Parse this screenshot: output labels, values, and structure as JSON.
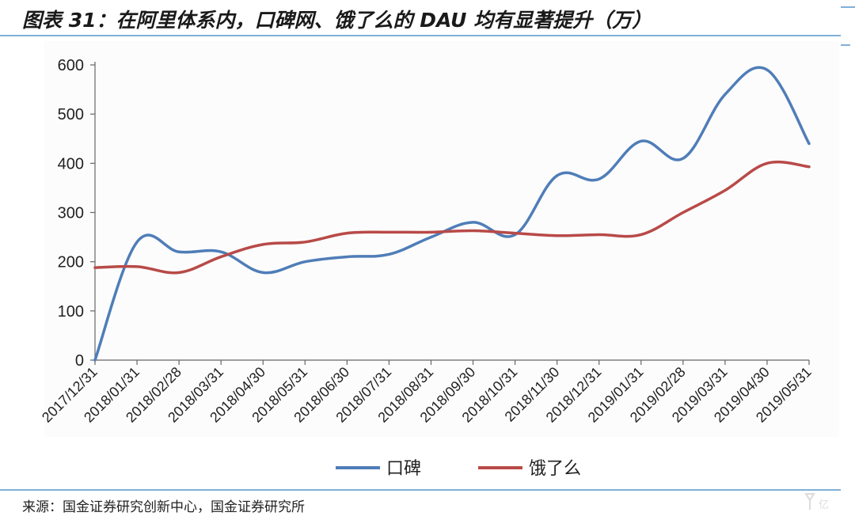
{
  "title": "图表 31：在阿里体系内，口碑网、饿了么的 DAU 均有显著提升（万）",
  "source": "来源：国金证券研究创新中心，国金证券研究所",
  "chart_data": {
    "type": "line",
    "categories": [
      "2017/12/31",
      "2018/01/31",
      "2018/02/28",
      "2018/03/31",
      "2018/04/30",
      "2018/05/31",
      "2018/06/30",
      "2018/07/31",
      "2018/08/31",
      "2018/09/30",
      "2018/10/31",
      "2018/11/30",
      "2018/12/31",
      "2019/01/31",
      "2019/02/28",
      "2019/03/31",
      "2019/04/30",
      "2019/05/31"
    ],
    "series": [
      {
        "name": "口碑",
        "color": "#4f7db8",
        "values": [
          0,
          240,
          220,
          220,
          178,
          200,
          210,
          215,
          250,
          280,
          255,
          375,
          368,
          445,
          410,
          540,
          590,
          440
        ]
      },
      {
        "name": "饿了么",
        "color": "#b84a48",
        "values": [
          188,
          190,
          178,
          210,
          235,
          240,
          258,
          260,
          260,
          263,
          258,
          253,
          255,
          255,
          300,
          345,
          400,
          393
        ]
      }
    ],
    "ylim": [
      0,
      600
    ],
    "yticks": [
      0,
      100,
      200,
      300,
      400,
      500,
      600
    ],
    "xlabel": "",
    "ylabel": "",
    "grid": false,
    "legend": "bottom-center"
  }
}
